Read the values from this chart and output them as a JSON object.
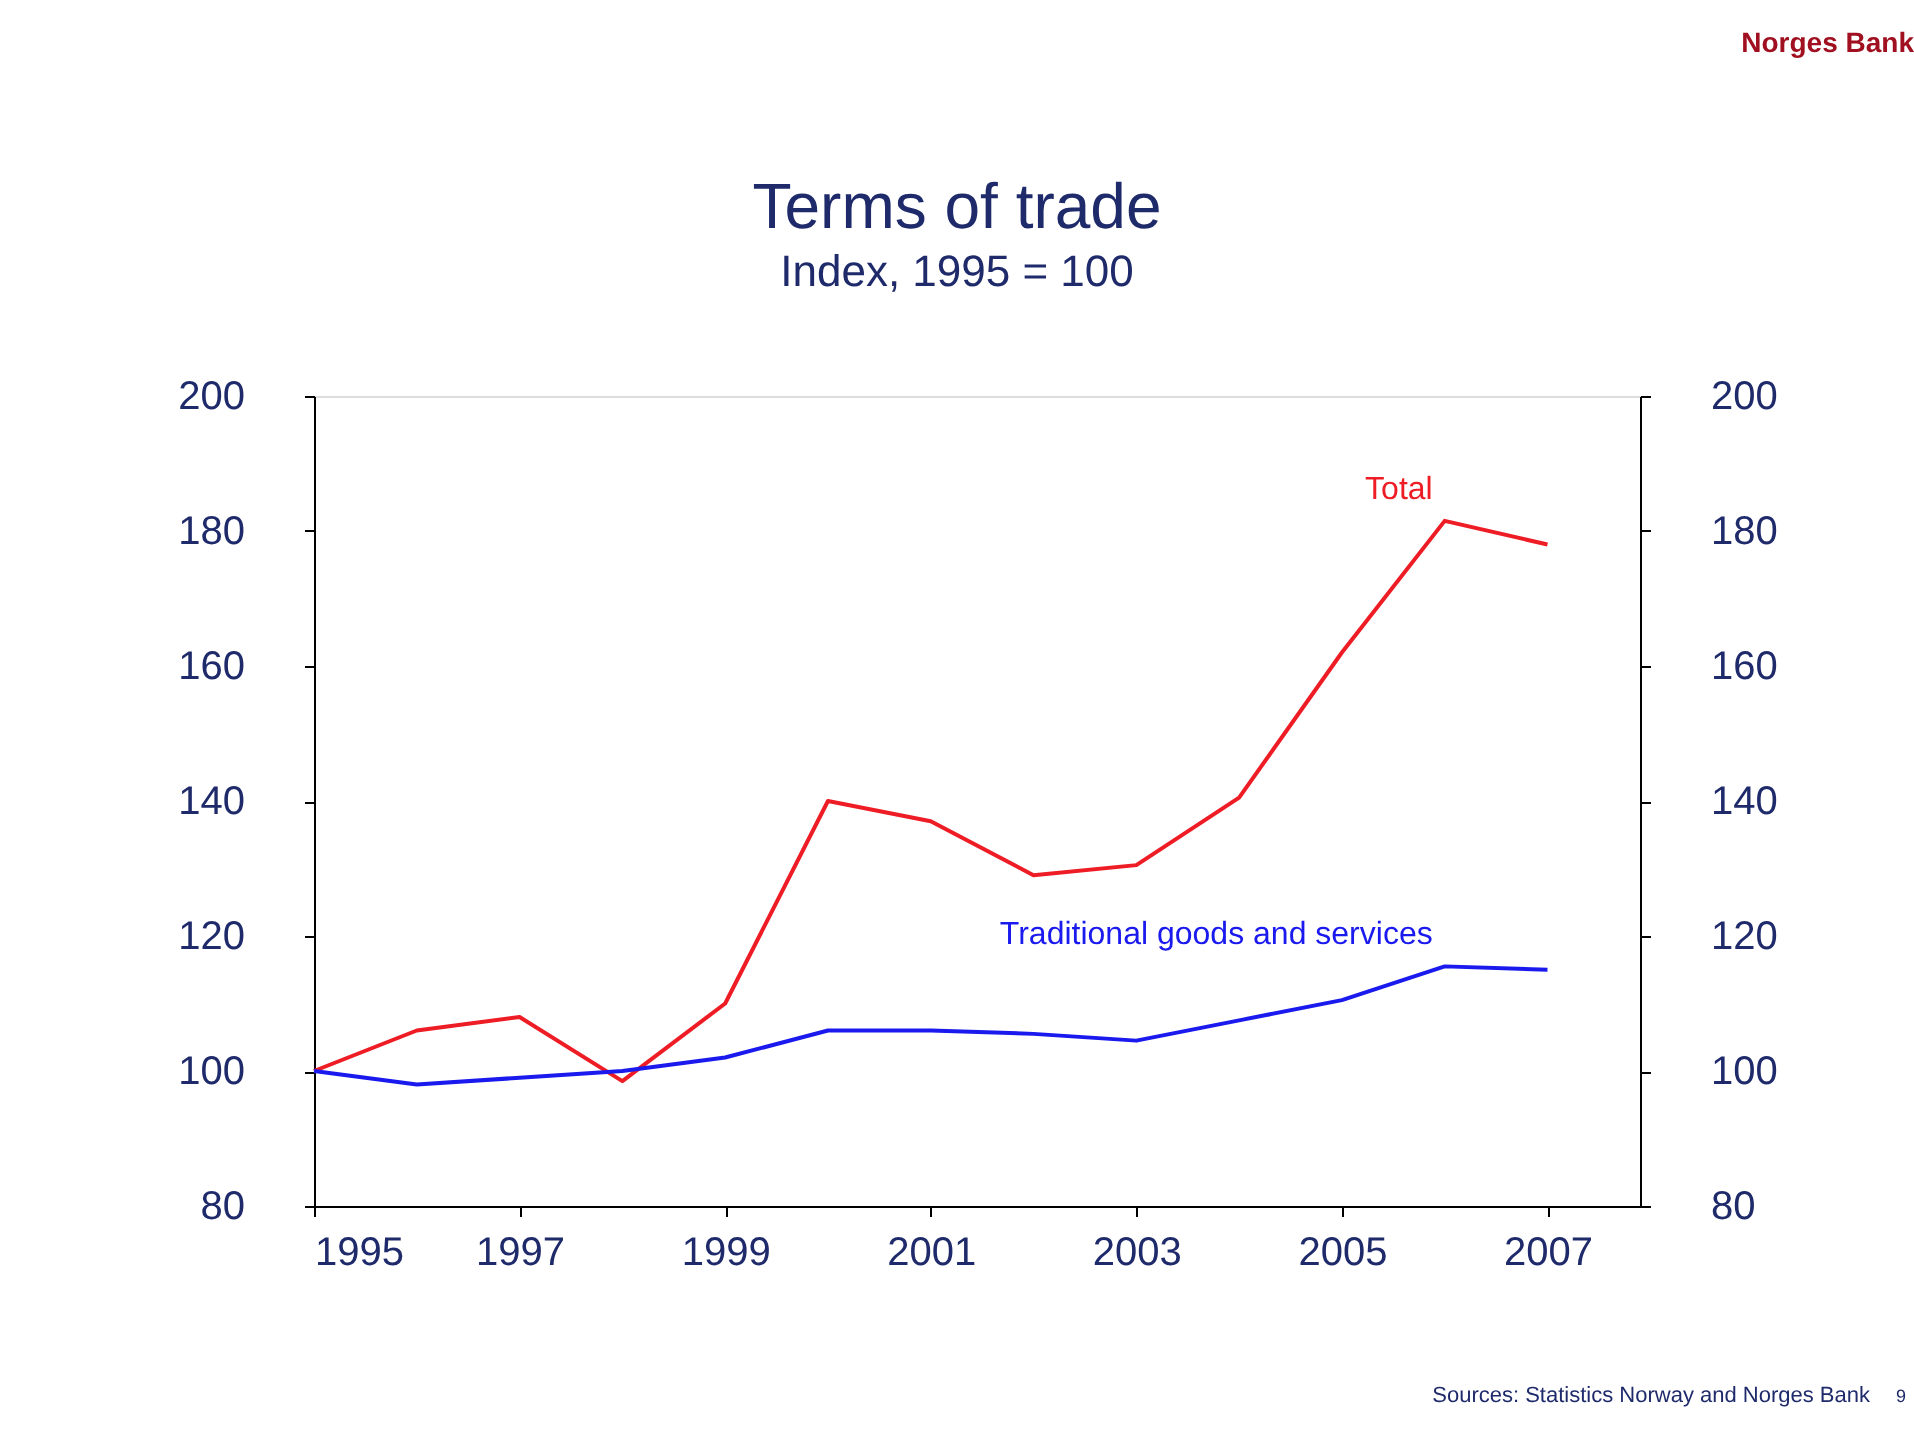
{
  "chart_data": {
    "type": "line",
    "title": "Terms of trade",
    "subtitle": "Index, 1995 = 100",
    "x": [
      1995,
      1996,
      1997,
      1998,
      1999,
      2000,
      2001,
      2002,
      2003,
      2004,
      2005,
      2006,
      2007
    ],
    "series": [
      {
        "name": "Total",
        "color": "#ee1c25",
        "values": [
          100,
          106,
          108,
          98.5,
          110,
          140,
          137,
          129,
          130.5,
          140.5,
          162,
          181.5,
          178
        ]
      },
      {
        "name": "Traditional goods and services",
        "color": "#1a1aee",
        "values": [
          100,
          98,
          99,
          100,
          102,
          106,
          106,
          105.5,
          104.5,
          107.5,
          110.5,
          115.5,
          115
        ]
      }
    ],
    "xlim": [
      1995,
      2007.9
    ],
    "xticks": [
      1995,
      1997,
      1999,
      2001,
      2003,
      2005,
      2007
    ],
    "ylim": [
      80,
      200
    ],
    "yticks": [
      80,
      100,
      120,
      140,
      160,
      180,
      200
    ],
    "y2lim": [
      80,
      200
    ],
    "y2ticks": [
      80,
      100,
      120,
      140,
      160,
      180,
      200
    ],
    "grid": false,
    "legend": false,
    "marker": "none",
    "line_style": "solid",
    "annotations": [
      "Norges Bank",
      "Sources: Statistics Norway and Norges Bank",
      "9"
    ]
  }
}
